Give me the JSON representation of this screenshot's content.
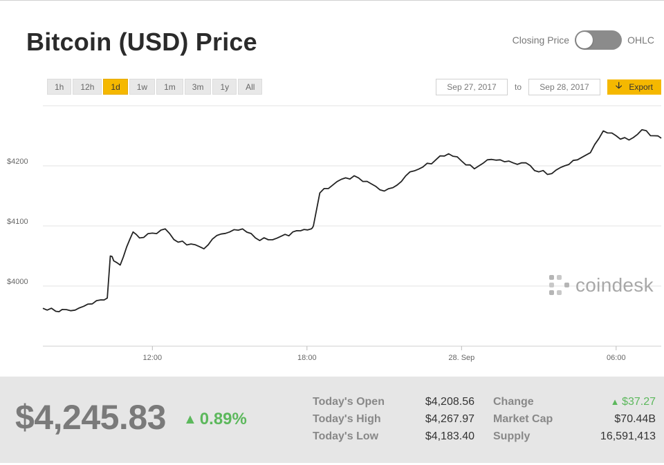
{
  "header": {
    "title": "Bitcoin (USD) Price",
    "toggle_left_label": "Closing Price",
    "toggle_right_label": "OHLC"
  },
  "range_buttons": [
    "1h",
    "12h",
    "1d",
    "1w",
    "1m",
    "3m",
    "1y",
    "All"
  ],
  "active_range": "1d",
  "date_range": {
    "from": "Sep 27, 2017",
    "to_label": "to",
    "to": "Sep 28, 2017",
    "export_label": "Export"
  },
  "watermark": "coindesk",
  "colors": {
    "accent": "#f5b800",
    "line": "#222222",
    "positive": "#5cb85c"
  },
  "chart_data": {
    "type": "line",
    "title": "",
    "xlabel": "",
    "ylabel": "",
    "x_tick_labels": [
      "12:00",
      "18:00",
      "28. Sep",
      "06:00"
    ],
    "x_ticks": [
      "2017-09-27 12:00",
      "2017-09-27 18:00",
      "2017-09-28 00:00",
      "2017-09-28 06:00"
    ],
    "y_tick_labels": [
      "$4000",
      "$4100",
      "$4200"
    ],
    "y_ticks": [
      4000,
      4100,
      4200
    ],
    "ylim": [
      3900,
      4300
    ],
    "xlim": [
      "2017-09-27 07:45",
      "2017-09-28 07:45"
    ],
    "grid": true,
    "legend": "none",
    "series": [
      {
        "x": [
          "2017-09-27 07:45",
          "2017-09-27 08:15",
          "2017-09-27 08:30",
          "2017-09-27 09:00",
          "2017-09-27 09:30",
          "2017-09-27 10:00",
          "2017-09-27 10:15",
          "2017-09-27 10:22",
          "2017-09-27 10:30",
          "2017-09-27 10:45",
          "2017-09-27 11:00",
          "2017-09-27 11:15",
          "2017-09-27 11:30",
          "2017-09-27 12:00",
          "2017-09-27 12:30",
          "2017-09-27 13:00",
          "2017-09-27 13:30",
          "2017-09-27 14:00",
          "2017-09-27 14:30",
          "2017-09-27 15:00",
          "2017-09-27 15:30",
          "2017-09-27 16:00",
          "2017-09-27 16:30",
          "2017-09-27 17:00",
          "2017-09-27 17:45",
          "2017-09-27 18:10",
          "2017-09-27 18:15",
          "2017-09-27 18:30",
          "2017-09-27 19:00",
          "2017-09-27 19:30",
          "2017-09-27 20:00",
          "2017-09-27 20:30",
          "2017-09-27 21:00",
          "2017-09-27 21:30",
          "2017-09-27 22:00",
          "2017-09-27 22:30",
          "2017-09-27 23:00",
          "2017-09-27 23:30",
          "2017-09-28 00:00",
          "2017-09-28 00:30",
          "2017-09-28 01:00",
          "2017-09-28 01:30",
          "2017-09-28 02:00",
          "2017-09-28 02:30",
          "2017-09-28 03:00",
          "2017-09-28 03:30",
          "2017-09-28 04:00",
          "2017-09-28 04:30",
          "2017-09-28 05:00",
          "2017-09-28 05:30",
          "2017-09-28 06:00",
          "2017-09-28 06:30",
          "2017-09-28 07:00",
          "2017-09-28 07:30",
          "2017-09-28 07:45"
        ],
        "y": [
          3963,
          3958,
          3961,
          3960,
          3970,
          3977,
          3980,
          4050,
          4042,
          4035,
          4065,
          4090,
          4080,
          4088,
          4095,
          4073,
          4070,
          4062,
          4084,
          4090,
          4095,
          4080,
          4077,
          4083,
          4092,
          4095,
          4100,
          4155,
          4168,
          4180,
          4180,
          4170,
          4158,
          4168,
          4190,
          4198,
          4210,
          4220,
          4208,
          4195,
          4210,
          4210,
          4205,
          4205,
          4190,
          4187,
          4200,
          4210,
          4222,
          4258,
          4250,
          4243,
          4260,
          4250,
          4246
        ]
      }
    ]
  },
  "summary": {
    "price": "$4,245.83",
    "change_pct": "0.89%",
    "rows": [
      {
        "label": "Today's Open",
        "value": "$4,208.56",
        "label2": "Change",
        "value2": "$37.27"
      },
      {
        "label": "Today's High",
        "value": "$4,267.97",
        "label2": "Market Cap",
        "value2": "$70.44B"
      },
      {
        "label": "Today's Low",
        "value": "$4,183.40",
        "label2": "Supply",
        "value2": "16,591,413"
      }
    ]
  }
}
